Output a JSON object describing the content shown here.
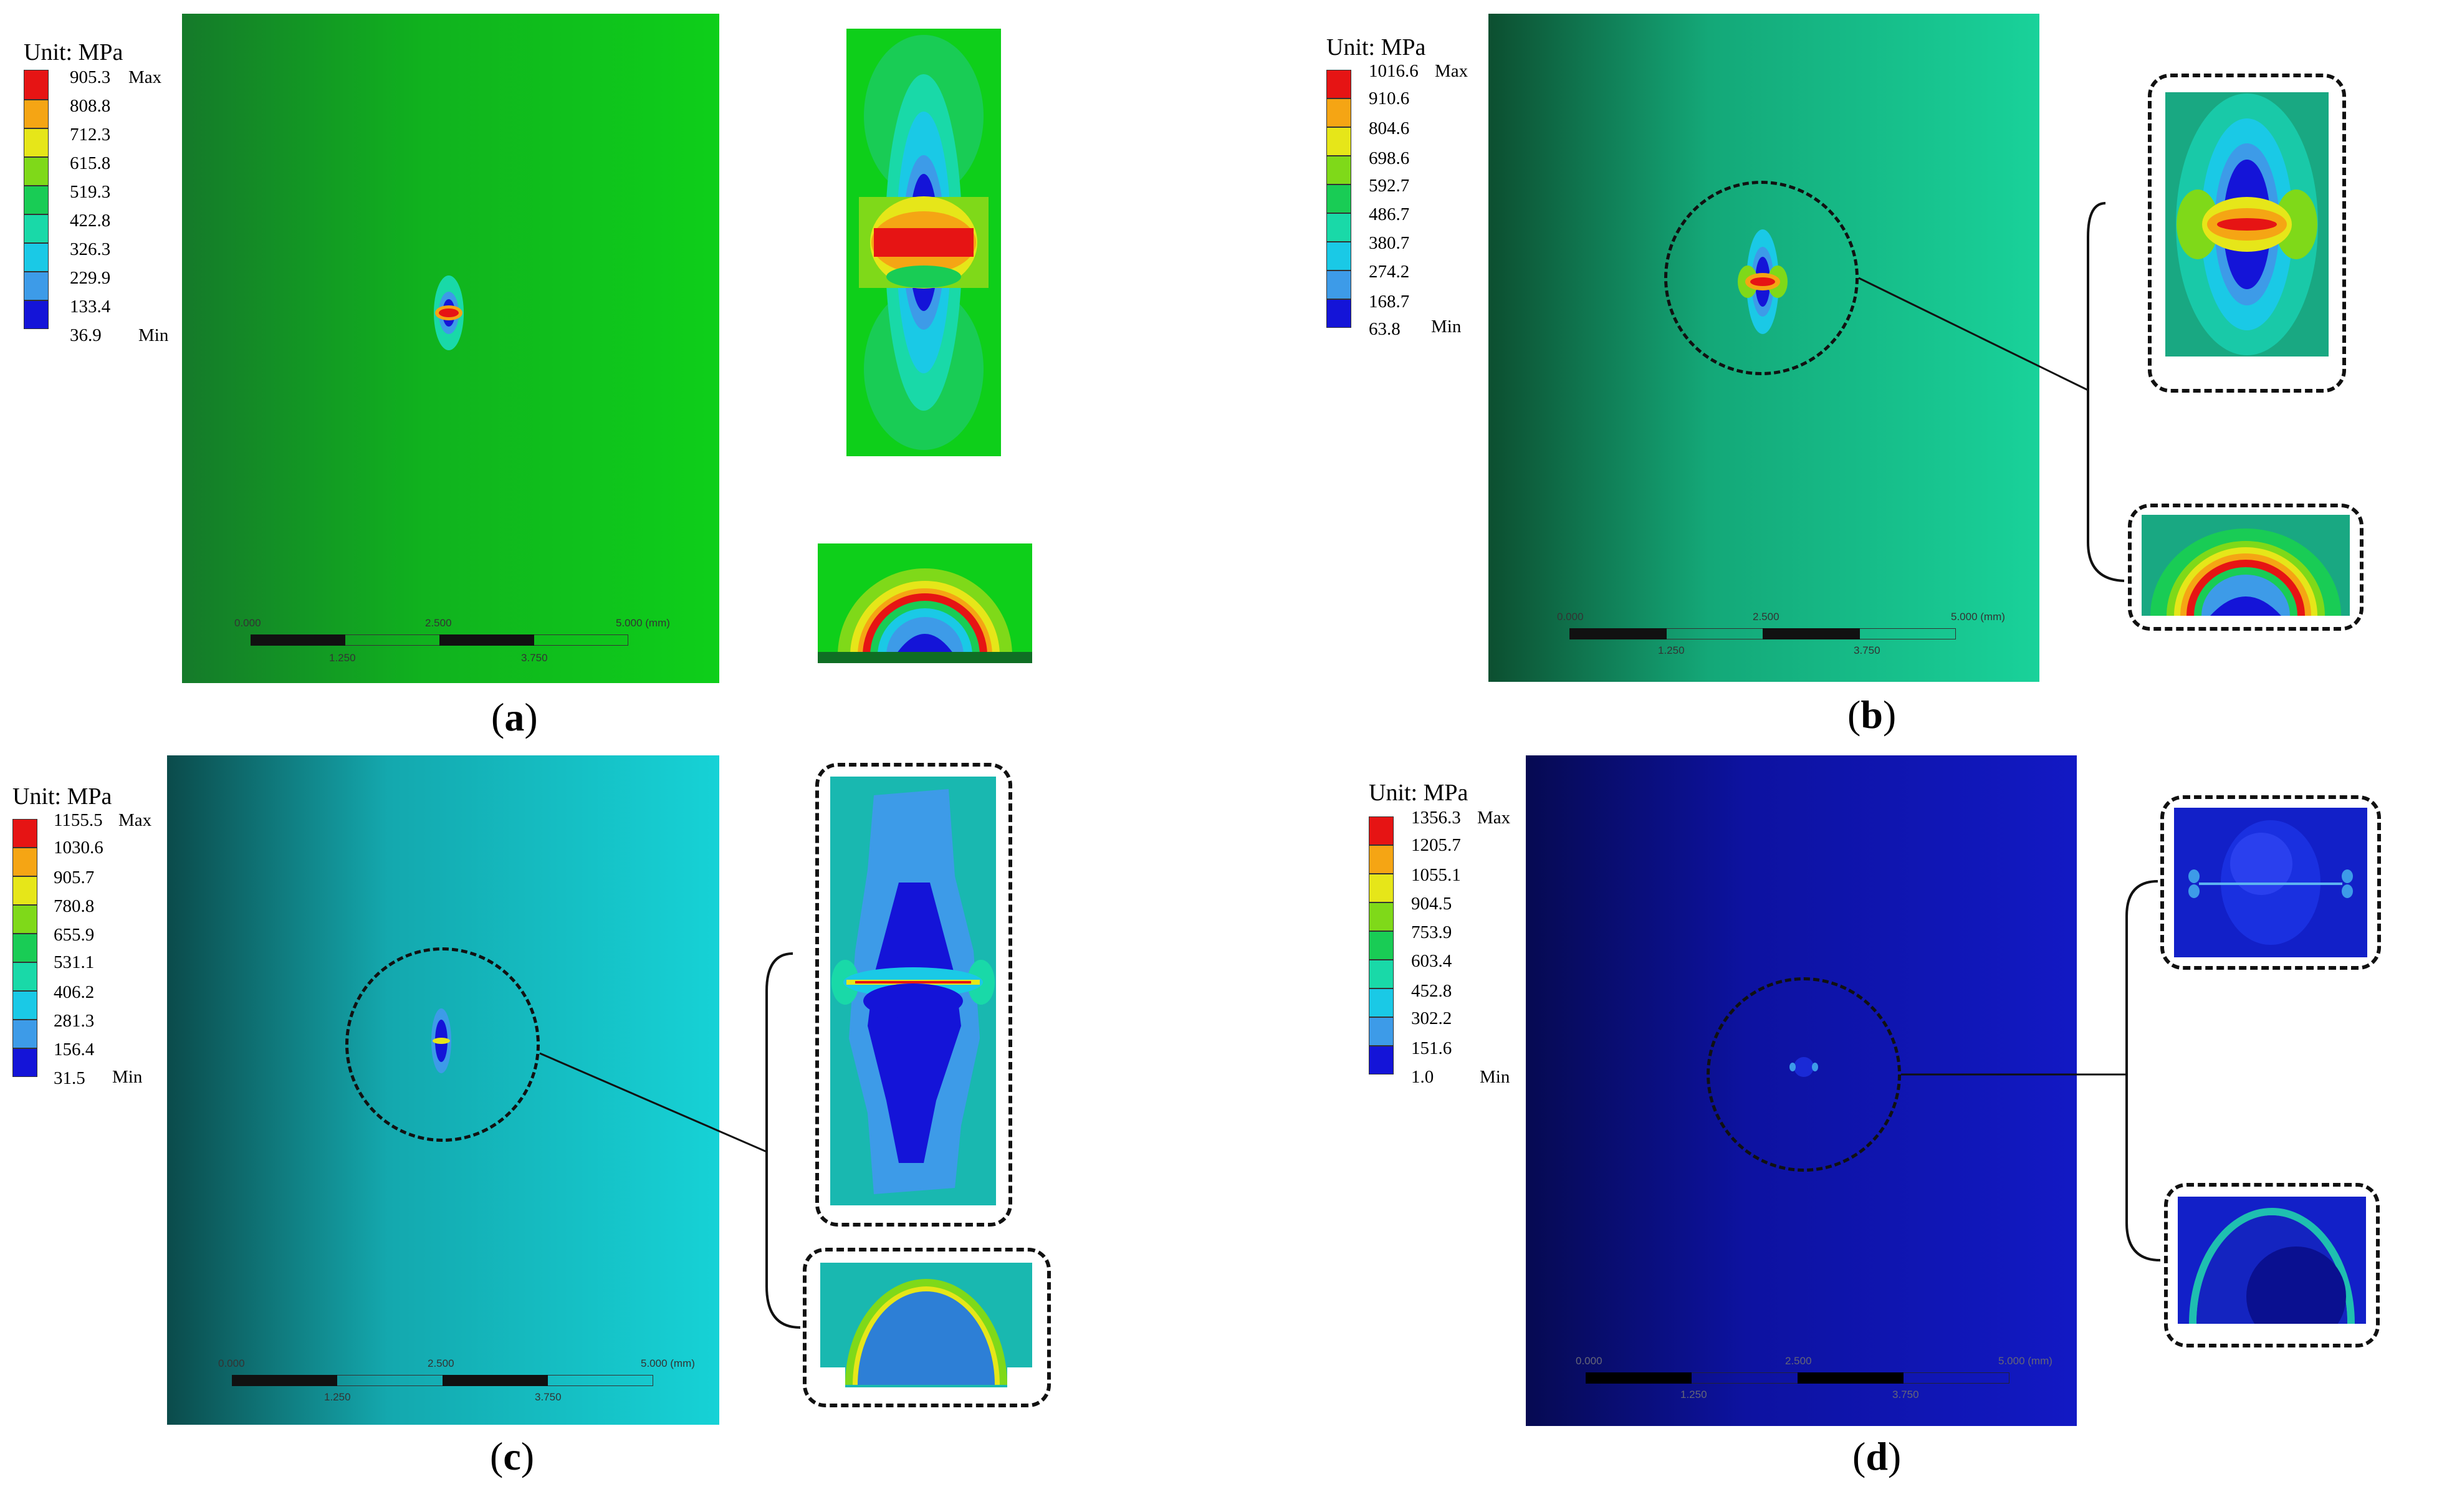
{
  "legend_colors": [
    "#1414d8",
    "#3d9be8",
    "#1ac9e6",
    "#19d9a8",
    "#19cc55",
    "#7fd919",
    "#e6e619",
    "#f5a514",
    "#e61414"
  ],
  "panels": [
    {
      "id": "a",
      "caption_letter": "a",
      "unit": "Unit: MPa",
      "max_tag": "Max",
      "min_tag": "Min",
      "values": [
        "905.3",
        "808.8",
        "712.3",
        "615.8",
        "519.3",
        "422.8",
        "326.3",
        "229.9",
        "133.4",
        "36.9"
      ],
      "plate_color_dark": "#15782a",
      "plate_color_light": "#0ecf1a",
      "scalebar": {
        "top": [
          "0.000",
          "2.500",
          "5.000 (mm)"
        ],
        "bottom": [
          "1.250",
          "3.750"
        ]
      }
    },
    {
      "id": "b",
      "caption_letter": "b",
      "unit": "Unit: MPa",
      "max_tag": "Max",
      "min_tag": "Min",
      "values": [
        "1016.6",
        "910.6",
        "804.6",
        "698.6",
        "592.7",
        "486.7",
        "380.7",
        "274.2",
        "168.7",
        "63.8"
      ],
      "plate_color_dark": "#0c4f30",
      "plate_color_light": "#19d29a",
      "scalebar": {
        "top": [
          "0.000",
          "2.500",
          "5.000 (mm)"
        ],
        "bottom": [
          "1.250",
          "3.750"
        ]
      }
    },
    {
      "id": "c",
      "caption_letter": "c",
      "unit": "Unit: MPa",
      "max_tag": "Max",
      "min_tag": "Min",
      "values": [
        "1155.5",
        "1030.6",
        "905.7",
        "780.8",
        "655.9",
        "531.1",
        "406.2",
        "281.3",
        "156.4",
        "31.5"
      ],
      "plate_color_dark": "#0b4b4b",
      "plate_color_light": "#16d2d6",
      "scalebar": {
        "top": [
          "0.000",
          "2.500",
          "5.000 (mm)"
        ],
        "bottom": [
          "1.250",
          "3.750"
        ]
      }
    },
    {
      "id": "d",
      "caption_letter": "d",
      "unit": "Unit: MPa",
      "max_tag": "Max",
      "min_tag": "Min",
      "values": [
        "1356.3",
        "1205.7",
        "1055.1",
        "904.5",
        "753.9",
        "603.4",
        "452.8",
        "302.2",
        "151.6",
        "1.0"
      ],
      "plate_color_dark": "#060a52",
      "plate_color_light": "#1219c4",
      "scalebar": {
        "top": [
          "0.000",
          "2.500",
          "5.000 (mm)"
        ],
        "bottom": [
          "1.250",
          "3.750"
        ]
      }
    }
  ]
}
